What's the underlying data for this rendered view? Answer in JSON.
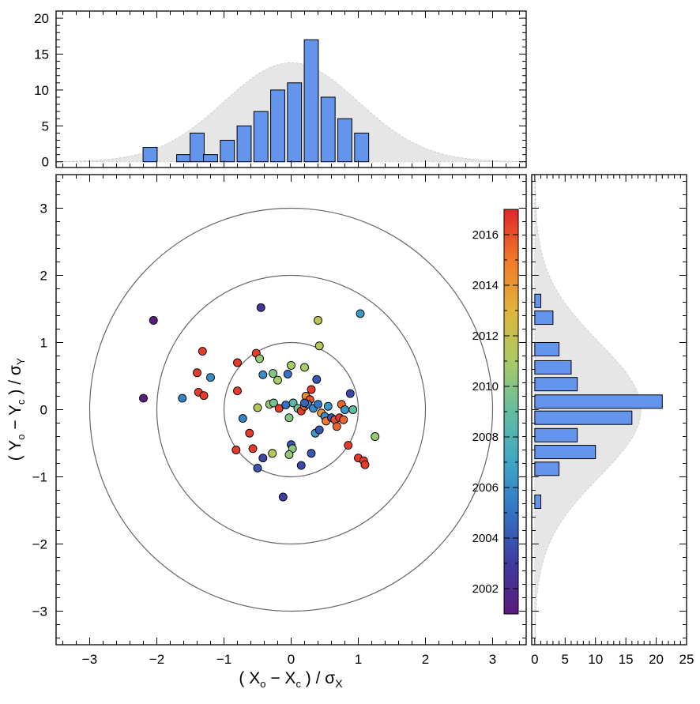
{
  "chart_data": [
    {
      "id": "scatter",
      "type": "scatter",
      "xlabel": "( Xₒ − Xᴄ ) / σX",
      "ylabel": "( Yₒ − Yᴄ ) / σY",
      "xlim": [
        -3.5,
        3.5
      ],
      "ylim": [
        -3.5,
        3.5
      ],
      "x_ticks": [
        -3,
        -2,
        -1,
        0,
        1,
        2,
        3
      ],
      "y_ticks": [
        -3,
        -2,
        -1,
        0,
        1,
        2,
        3
      ],
      "x_tick_labels": [
        "−3",
        "−2",
        "−1",
        "0",
        "1",
        "2",
        "3"
      ],
      "y_tick_labels": [
        "−3",
        "−2",
        "−1",
        "0",
        "1",
        "2",
        "3"
      ],
      "rings": [
        1,
        2,
        3
      ],
      "color_by": "year",
      "points": [
        {
          "x": -2.05,
          "y": 1.33,
          "year": 2001.3
        },
        {
          "x": -2.2,
          "y": 0.17,
          "year": 2001.3
        },
        {
          "x": -0.45,
          "y": 1.52,
          "year": 2002.5
        },
        {
          "x": 0.4,
          "y": 1.33,
          "year": 2011.8
        },
        {
          "x": 1.03,
          "y": 1.43,
          "year": 2006.5
        },
        {
          "x": 0.42,
          "y": 0.95,
          "year": 2011.5
        },
        {
          "x": -1.32,
          "y": 0.87,
          "year": 2016.5
        },
        {
          "x": -0.52,
          "y": 0.84,
          "year": 2016.5
        },
        {
          "x": -0.47,
          "y": 0.76,
          "year": 2010.5
        },
        {
          "x": -0.8,
          "y": 0.7,
          "year": 2016.5
        },
        {
          "x": -1.4,
          "y": 0.55,
          "year": 2016.5
        },
        {
          "x": -1.2,
          "y": 0.48,
          "year": 2006.0
        },
        {
          "x": -0.42,
          "y": 0.52,
          "year": 2006.0
        },
        {
          "x": -0.27,
          "y": 0.54,
          "year": 2010.0
        },
        {
          "x": -0.2,
          "y": 0.44,
          "year": 2011.0
        },
        {
          "x": -0.05,
          "y": 0.53,
          "year": 2005.0
        },
        {
          "x": 0.0,
          "y": 0.66,
          "year": 2011.0
        },
        {
          "x": 0.2,
          "y": 0.63,
          "year": 2011.0
        },
        {
          "x": 0.38,
          "y": 0.45,
          "year": 2004.0
        },
        {
          "x": 0.88,
          "y": 0.24,
          "year": 2003.5
        },
        {
          "x": -1.38,
          "y": 0.26,
          "year": 2016.5
        },
        {
          "x": -1.3,
          "y": 0.21,
          "year": 2016.5
        },
        {
          "x": -1.62,
          "y": 0.17,
          "year": 2005.5
        },
        {
          "x": -0.8,
          "y": 0.28,
          "year": 2016.5
        },
        {
          "x": -0.72,
          "y": -0.13,
          "year": 2005.5
        },
        {
          "x": -0.5,
          "y": 0.03,
          "year": 2011.5
        },
        {
          "x": -0.32,
          "y": 0.08,
          "year": 2010.5
        },
        {
          "x": -0.26,
          "y": 0.1,
          "year": 2009.5
        },
        {
          "x": -0.18,
          "y": 0.02,
          "year": 2016.5
        },
        {
          "x": -0.08,
          "y": 0.07,
          "year": 2005.0
        },
        {
          "x": -0.03,
          "y": -0.12,
          "year": 2010.0
        },
        {
          "x": 0.03,
          "y": 0.1,
          "year": 2008.5
        },
        {
          "x": 0.1,
          "y": 0.02,
          "year": 2009.5
        },
        {
          "x": 0.15,
          "y": -0.02,
          "year": 2016.5
        },
        {
          "x": 0.2,
          "y": 0.05,
          "year": 2015.5
        },
        {
          "x": 0.22,
          "y": 0.2,
          "year": 2014.5
        },
        {
          "x": 0.28,
          "y": 0.15,
          "year": 2016.0
        },
        {
          "x": 0.25,
          "y": 0.08,
          "year": 2005.5
        },
        {
          "x": 0.3,
          "y": 0.3,
          "year": 2016.5
        },
        {
          "x": 0.33,
          "y": 0.02,
          "year": 2006.0
        },
        {
          "x": 0.36,
          "y": -0.35,
          "year": 2006.5
        },
        {
          "x": 0.4,
          "y": 0.08,
          "year": 2005.0
        },
        {
          "x": 0.42,
          "y": -0.3,
          "year": 2004.0
        },
        {
          "x": 0.45,
          "y": -0.05,
          "year": 2014.0
        },
        {
          "x": 0.5,
          "y": -0.1,
          "year": 2006.0
        },
        {
          "x": 0.55,
          "y": 0.05,
          "year": 2006.5
        },
        {
          "x": 0.52,
          "y": -0.17,
          "year": 2015.0
        },
        {
          "x": 0.6,
          "y": -0.12,
          "year": 2004.0
        },
        {
          "x": 0.65,
          "y": -0.15,
          "year": 2016.0
        },
        {
          "x": 0.68,
          "y": -0.25,
          "year": 2015.5
        },
        {
          "x": 0.72,
          "y": -0.12,
          "year": 2016.5
        },
        {
          "x": 0.78,
          "y": -0.15,
          "year": 2015.5
        },
        {
          "x": 0.75,
          "y": 0.08,
          "year": 2015.5
        },
        {
          "x": 0.8,
          "y": 0.0,
          "year": 2006.5
        },
        {
          "x": 0.92,
          "y": 0.0,
          "year": 2009.0
        },
        {
          "x": 0.85,
          "y": -0.53,
          "year": 2016.5
        },
        {
          "x": 1.0,
          "y": -0.72,
          "year": 2016.5
        },
        {
          "x": 1.08,
          "y": -0.76,
          "year": 2016.5
        },
        {
          "x": 1.1,
          "y": -0.82,
          "year": 2016.5
        },
        {
          "x": 1.25,
          "y": -0.4,
          "year": 2010.5
        },
        {
          "x": -0.82,
          "y": -0.6,
          "year": 2016.5
        },
        {
          "x": -0.57,
          "y": -0.58,
          "year": 2016.5
        },
        {
          "x": -0.62,
          "y": -0.35,
          "year": 2016.5
        },
        {
          "x": -0.28,
          "y": -0.65,
          "year": 2011.5
        },
        {
          "x": -0.42,
          "y": -0.72,
          "year": 2003.5
        },
        {
          "x": -0.5,
          "y": -0.87,
          "year": 2004.0
        },
        {
          "x": 0.0,
          "y": -0.52,
          "year": 2004.0
        },
        {
          "x": 0.02,
          "y": -0.58,
          "year": 2010.0
        },
        {
          "x": -0.03,
          "y": -0.67,
          "year": 2010.5
        },
        {
          "x": 0.3,
          "y": -0.65,
          "year": 2004.0
        },
        {
          "x": 0.15,
          "y": -0.83,
          "year": 2003.5
        },
        {
          "x": 0.2,
          "y": 0.1,
          "year": 2004.5
        },
        {
          "x": -0.12,
          "y": -1.3,
          "year": 2003.0
        }
      ]
    },
    {
      "id": "top_histogram",
      "type": "bar",
      "orientation": "vertical",
      "bin_centers": [
        -2.1,
        -1.6,
        -1.4,
        -1.2,
        -0.95,
        -0.7,
        -0.45,
        -0.2,
        0.05,
        0.3,
        0.55,
        0.8,
        1.05
      ],
      "bin_width": 0.21,
      "values": [
        2,
        1,
        4,
        1,
        3,
        5,
        7,
        10,
        11,
        17,
        9,
        6,
        4
      ],
      "xlim": [
        -3.5,
        3.5
      ],
      "ylim": [
        -0.8,
        21
      ],
      "y_ticks": [
        0,
        5,
        10,
        15,
        20
      ],
      "y_tick_labels": [
        "0",
        "5",
        "10",
        "15",
        "20"
      ],
      "gaussian_background": {
        "mean": 0,
        "sigma": 1,
        "peak": 13.8
      }
    },
    {
      "id": "right_histogram",
      "type": "bar",
      "orientation": "horizontal",
      "bin_centers": [
        1.62,
        1.37,
        0.9,
        0.63,
        0.38,
        0.12,
        -0.12,
        -0.38,
        -0.63,
        -0.88,
        -1.37
      ],
      "bin_width": 0.2,
      "values": [
        1,
        3,
        4,
        6,
        7,
        21,
        16,
        7,
        10,
        4,
        1
      ],
      "ylim": [
        -3.5,
        3.5
      ],
      "xlim": [
        -0.5,
        25
      ],
      "x_ticks": [
        0,
        5,
        10,
        15,
        20,
        25
      ],
      "x_tick_labels": [
        "0",
        "5",
        "10",
        "15",
        "20",
        "25"
      ],
      "gaussian_background": {
        "mean": 0,
        "sigma": 1,
        "peak": 17.5
      }
    },
    {
      "id": "colorbar",
      "type": "colorbar",
      "range": [
        2001,
        2017
      ],
      "ticks": [
        2002,
        2004,
        2006,
        2008,
        2010,
        2012,
        2014,
        2016
      ],
      "tick_labels": [
        "2002",
        "2004",
        "2006",
        "2008",
        "2010",
        "2012",
        "2014",
        "2016"
      ],
      "colormap": [
        "#5c1a7e",
        "#3f3ba0",
        "#3373c4",
        "#3fa6c8",
        "#63bda0",
        "#a9cb64",
        "#e1b43a",
        "#f07a2a",
        "#e0262b"
      ]
    }
  ]
}
